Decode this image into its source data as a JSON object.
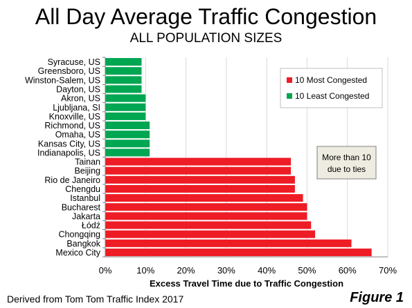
{
  "header": {
    "title": "All Day Average Traffic Congestion",
    "subtitle": "ALL POPULATION SIZES"
  },
  "footer": {
    "source": "Derived from Tom Tom Traffic Index 2017",
    "figure_label": "Figure 1"
  },
  "note": {
    "line1": "More than 10",
    "line2": "due to ties"
  },
  "chart_data": {
    "type": "bar",
    "orientation": "horizontal",
    "title": "All Day Average Traffic Congestion",
    "subtitle": "ALL POPULATION SIZES",
    "xlabel": "Excess Travel Time due to Traffic Congestion",
    "ylabel": "",
    "xlim": [
      0,
      70
    ],
    "x_ticks": [
      "0%",
      "10%",
      "20%",
      "30%",
      "40%",
      "50%",
      "60%",
      "70%"
    ],
    "grid": "vertical",
    "legend_position": "top-right",
    "colors": {
      "most": "#ee1c25",
      "least": "#00a651"
    },
    "legend": [
      {
        "key": "most",
        "label": "10 Most Congested"
      },
      {
        "key": "least",
        "label": "10 Least Congested"
      }
    ],
    "categories": [
      "Syracuse, US",
      "Greensboro, US",
      "Winston-Salem, US",
      "Dayton, US",
      "Akron, US",
      "Ljubljana, SI",
      "Knoxville, US",
      "Richmond, US",
      "Omaha, US",
      "Kansas City, US",
      "Indianapolis, US",
      "Tainan",
      "Beijing",
      "Rio de Janeiro",
      "Chengdu",
      "Istanbul",
      "Bucharest",
      "Jakarta",
      "Łódź",
      "Chongqing",
      "Bangkok",
      "Mexico City"
    ],
    "values": [
      9,
      9,
      9,
      9,
      10,
      10,
      10,
      11,
      11,
      11,
      11,
      46,
      46,
      47,
      47,
      49,
      50,
      50,
      51,
      52,
      61,
      66
    ],
    "groups": [
      "least",
      "least",
      "least",
      "least",
      "least",
      "least",
      "least",
      "least",
      "least",
      "least",
      "least",
      "most",
      "most",
      "most",
      "most",
      "most",
      "most",
      "most",
      "most",
      "most",
      "most",
      "most"
    ]
  }
}
